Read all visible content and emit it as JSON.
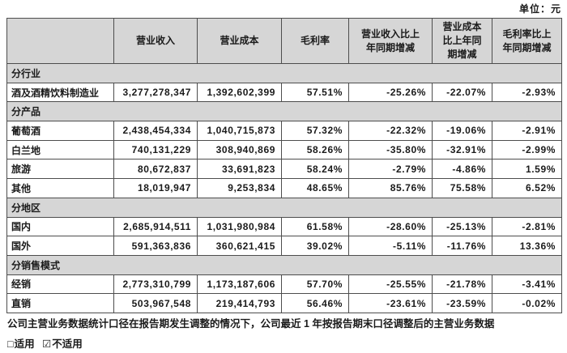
{
  "unit_label": "单位：元",
  "colors": {
    "background": "#ffffff",
    "header_fill": "#d6d6d6",
    "section_fill": "#d6d6d6",
    "border": "#4d4d4d",
    "text": "#1a1a1a"
  },
  "table": {
    "columns": [
      "",
      "营业收入",
      "营业成本",
      "毛利率",
      "营业收入比上\n年同期增减",
      "营业成本\n比上年同\n期增减",
      "毛利率比上\n年同期增减"
    ],
    "sections": [
      {
        "header": "分行业",
        "rows": [
          [
            "酒及酒精饮料制造业",
            "3,277,278,347",
            "1,392,602,399",
            "57.51%",
            "-25.26%",
            "-22.07%",
            "-2.93%"
          ]
        ]
      },
      {
        "header": "分产品",
        "rows": [
          [
            "葡萄酒",
            "2,438,454,334",
            "1,040,715,873",
            "57.32%",
            "-22.32%",
            "-19.06%",
            "-2.91%"
          ],
          [
            "白兰地",
            "740,131,229",
            "308,940,869",
            "58.26%",
            "-35.80%",
            "-32.91%",
            "-2.99%"
          ],
          [
            "旅游",
            "80,672,837",
            "33,691,823",
            "58.24%",
            "-2.79%",
            "-4.86%",
            "1.59%"
          ],
          [
            "其他",
            "18,019,947",
            "9,253,834",
            "48.65%",
            "85.76%",
            "75.58%",
            "6.52%"
          ]
        ]
      },
      {
        "header": "分地区",
        "rows": [
          [
            "国内",
            "2,685,914,511",
            "1,031,980,984",
            "61.58%",
            "-28.60%",
            "-25.13%",
            "-2.81%"
          ],
          [
            "国外",
            "591,363,836",
            "360,621,415",
            "39.02%",
            "-5.11%",
            "-11.76%",
            "13.36%"
          ]
        ]
      },
      {
        "header": "分销售模式",
        "rows": [
          [
            "经销",
            "2,773,310,799",
            "1,173,187,606",
            "57.70%",
            "-25.55%",
            "-21.78%",
            "-3.41%"
          ],
          [
            "直销",
            "503,967,548",
            "219,414,793",
            "56.46%",
            "-23.61%",
            "-23.59%",
            "-0.02%"
          ]
        ]
      }
    ]
  },
  "footer": {
    "note": "公司主营业务数据统计口径在报告期发生调整的情况下，公司最近 1 年按报告期末口径调整后的主营业务数据",
    "options": [
      {
        "checkbox": "□",
        "label": "适用"
      },
      {
        "checkbox": "☑",
        "label": "不适用"
      }
    ]
  }
}
